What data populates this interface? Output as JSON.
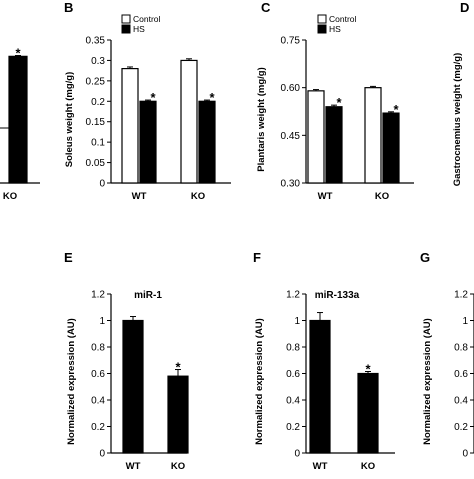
{
  "chart_data": [
    {
      "id": "A",
      "type": "bar",
      "panel_letter": "",
      "categories": [
        "KO"
      ],
      "series": [
        {
          "name": "",
          "values": [
            0.31
          ]
        }
      ],
      "errors": [
        [
          0.002
        ]
      ],
      "significance": [
        "*"
      ],
      "ylabel": "",
      "ylim": [
        0,
        0.35
      ],
      "yticks": [],
      "title": "",
      "legend": []
    },
    {
      "id": "B",
      "type": "bar",
      "panel_letter": "B",
      "categories": [
        "WT",
        "KO"
      ],
      "series": [
        {
          "name": "Control",
          "values": [
            0.28,
            0.3
          ]
        },
        {
          "name": "HS",
          "values": [
            0.2,
            0.2
          ]
        }
      ],
      "errors": [
        [
          0.004,
          0.004
        ],
        [
          0.003,
          0.003
        ]
      ],
      "significance": [
        [
          "",
          ""
        ],
        [
          "*",
          "*"
        ]
      ],
      "ylabel": "Soleus weight (mg/g)",
      "ylim": [
        0,
        0.35
      ],
      "yticks": [
        "0",
        "0.05",
        "0.1",
        "0.15",
        "0.2",
        "0.25",
        "0.3",
        "0.35"
      ],
      "title": "",
      "legend": [
        "Control",
        "HS"
      ]
    },
    {
      "id": "C",
      "type": "bar",
      "panel_letter": "C",
      "categories": [
        "WT",
        "KO"
      ],
      "series": [
        {
          "name": "Control",
          "values": [
            0.59,
            0.6
          ]
        },
        {
          "name": "HS",
          "values": [
            0.54,
            0.52
          ]
        }
      ],
      "errors": [
        [
          0.004,
          0.004
        ],
        [
          0.005,
          0.004
        ]
      ],
      "significance": [
        [
          "",
          ""
        ],
        [
          "*",
          "*"
        ]
      ],
      "ylabel": "Plantaris weight (mg/g)",
      "ylim": [
        0.3,
        0.75
      ],
      "yticks": [
        "0.30",
        "0.45",
        "0.60",
        "0.75"
      ],
      "title": "",
      "legend": [
        "Control",
        "HS"
      ]
    },
    {
      "id": "D",
      "type": "bar",
      "panel_letter": "D",
      "categories": [],
      "series": [],
      "ylabel": "Gastrocnemius weight (mg/g)",
      "title": "",
      "legend": []
    },
    {
      "id": "E",
      "type": "bar",
      "panel_letter": "E",
      "categories": [
        "WT",
        "KO"
      ],
      "series": [
        {
          "name": "",
          "values": [
            1.0,
            0.58
          ]
        }
      ],
      "errors": [
        [
          0.03,
          0.05
        ]
      ],
      "significance": [
        [
          "",
          "*"
        ]
      ],
      "ylabel": "Normalized expression (AU)",
      "ylim": [
        0,
        1.2
      ],
      "yticks": [
        "0",
        "0.2",
        "0.4",
        "0.6",
        "0.8",
        "1",
        "1.2"
      ],
      "title": "miR-1",
      "legend": []
    },
    {
      "id": "F",
      "type": "bar",
      "panel_letter": "F",
      "categories": [
        "WT",
        "KO"
      ],
      "series": [
        {
          "name": "",
          "values": [
            1.0,
            0.6
          ]
        }
      ],
      "errors": [
        [
          0.06,
          0.015
        ]
      ],
      "significance": [
        [
          "",
          "*"
        ]
      ],
      "ylabel": "Normalized expression (AU)",
      "ylim": [
        0,
        1.2
      ],
      "yticks": [
        "0",
        "0.2",
        "0.4",
        "0.6",
        "0.8",
        "1",
        "1.2"
      ],
      "title": "miR-133a",
      "legend": []
    },
    {
      "id": "G",
      "type": "bar",
      "panel_letter": "G",
      "categories": [],
      "series": [],
      "ylabel": "Normalized expression (AU)",
      "ylim": [
        0,
        1.2
      ],
      "yticks": [
        "0",
        "0.2",
        "0.4",
        "0.6",
        "0.8",
        "1",
        "1.2"
      ],
      "title": "",
      "legend": []
    }
  ]
}
